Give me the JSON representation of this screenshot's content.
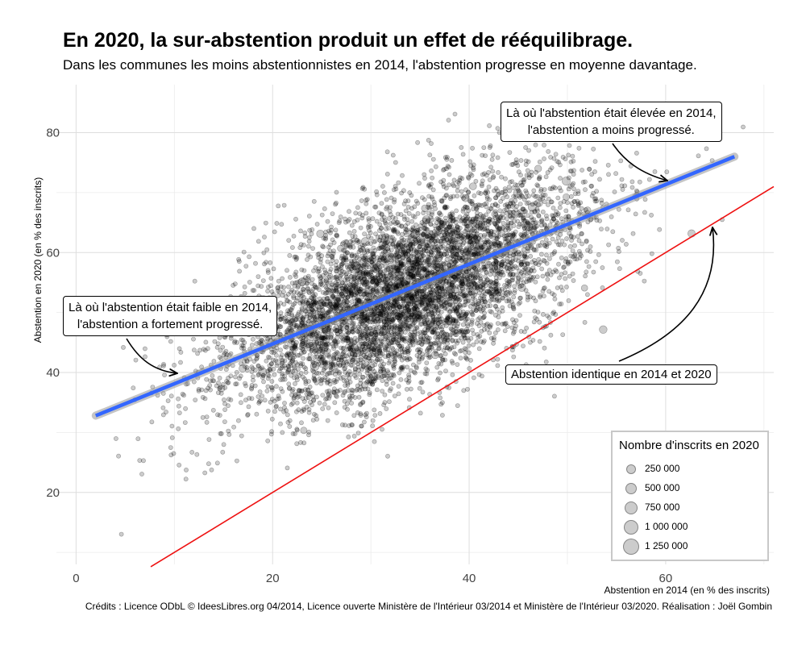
{
  "title": "En 2020, la sur-abstention produit un effet de rééquilibrage.",
  "subtitle": "Dans les communes les moins abstentionnistes en 2014, l'abstention progresse en moyenne davantage.",
  "caption": "Crédits : Licence ODbL © IdeesLibres.org 04/2014, Licence ouverte Ministère de l'Intérieur 03/2014 et Ministère de l'Intérieur 03/2020. Réalisation : Joël Gombin",
  "annotations": {
    "high": [
      "Là où l'abstention était élevée en 2014,",
      "l'abstention a moins progressé."
    ],
    "low": [
      "Là où l'abstention était faible en 2014,",
      "l'abstention a fortement progressé."
    ],
    "identity": "Abstention identique en 2014 et 2020"
  },
  "legend": {
    "title": "Nombre d'inscrits en 2020",
    "items": [
      "250 000",
      "500 000",
      "750 000",
      "1 000 000",
      "1 250 000"
    ]
  },
  "colors": {
    "points": "#000000",
    "trend": "#3366ff",
    "identity": "#ee1111"
  },
  "chart_data": {
    "type": "scatter",
    "title": "En 2020, la sur-abstention produit un effet de rééquilibrage.",
    "xlabel": "Abstention en 2014 (en % des inscrits)",
    "ylabel": "Abstention en 2020 (en % des inscrits)",
    "xlim": [
      -2,
      71
    ],
    "ylim": [
      8,
      88
    ],
    "xticks": [
      0,
      20,
      40,
      60
    ],
    "yticks": [
      20,
      40,
      60,
      80
    ],
    "grid": true,
    "trend_line": {
      "x": [
        2,
        67
      ],
      "y": [
        32.8,
        76
      ]
    },
    "identity_line": {
      "x": [
        7.6,
        71
      ],
      "y": [
        7.6,
        71
      ]
    },
    "point_cloud": {
      "count": 6000,
      "x_center": 33,
      "x_sd": 9,
      "slope": 0.66,
      "intercept": 31.5,
      "y_sd": 7.5,
      "x_range": [
        1.8,
        69
      ],
      "y_range": [
        10,
        84
      ]
    }
  }
}
